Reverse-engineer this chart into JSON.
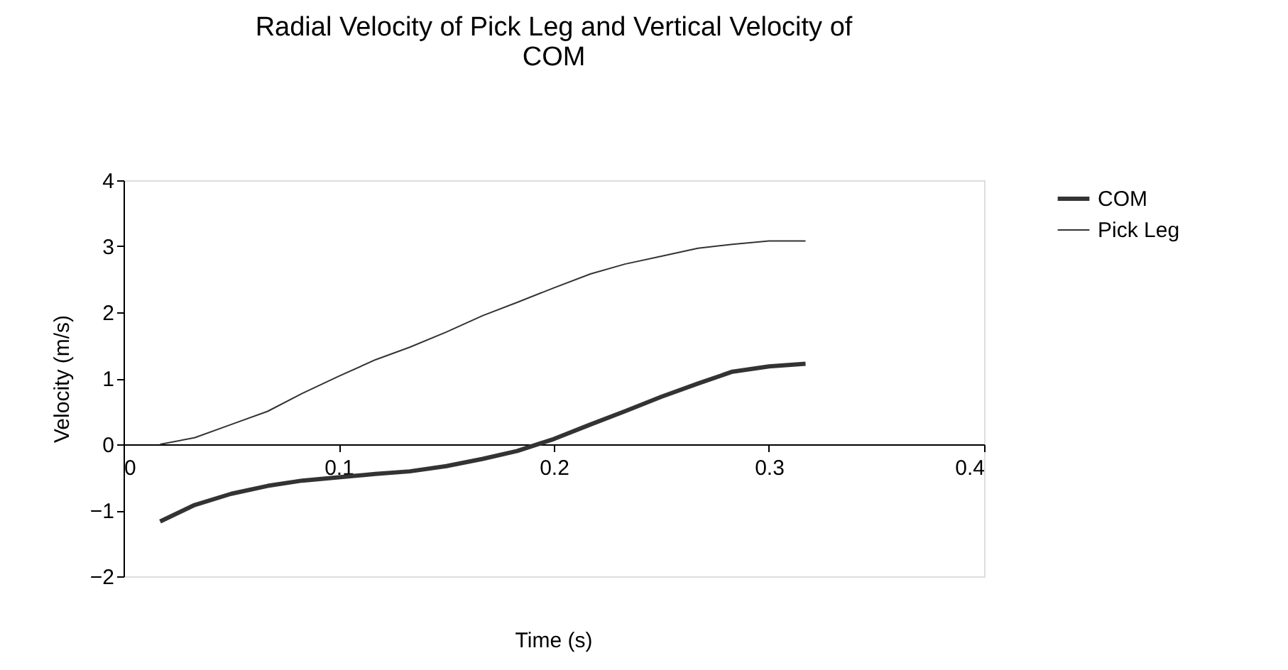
{
  "chart_data": {
    "type": "line",
    "title": "Radial Velocity of Pick  Leg and Vertical Velocity of COM",
    "xlabel": "Time (s)",
    "ylabel": "Velocity (m/s)",
    "xlim": [
      0,
      0.4
    ],
    "xticks": [
      0,
      0.1,
      0.2,
      0.3,
      0.4
    ],
    "ylim": [
      -2,
      4
    ],
    "yticks": [
      -2,
      -1,
      0,
      1,
      2,
      3,
      4
    ],
    "grid": false,
    "legend": "right",
    "marker": "none",
    "line_style": "solid",
    "x": [
      0.017,
      0.033,
      0.05,
      0.067,
      0.083,
      0.1,
      0.117,
      0.133,
      0.15,
      0.167,
      0.183,
      0.2,
      0.217,
      0.233,
      0.25,
      0.267,
      0.283,
      0.3,
      0.317
    ],
    "series": [
      {
        "name": "COM",
        "color": "#333333",
        "values": [
          -1.17,
          -0.92,
          -0.75,
          -0.63,
          -0.55,
          -0.5,
          -0.45,
          -0.41,
          -0.33,
          -0.22,
          -0.1,
          0.08,
          0.3,
          0.5,
          0.72,
          0.92,
          1.1,
          1.18,
          1.22
        ]
      },
      {
        "name": "Pick Leg",
        "color": "#333333",
        "values": [
          0.0,
          0.1,
          0.3,
          0.5,
          0.77,
          1.03,
          1.28,
          1.47,
          1.7,
          1.95,
          2.15,
          2.37,
          2.58,
          2.73,
          2.85,
          2.97,
          3.03,
          3.08,
          3.08
        ]
      }
    ]
  }
}
